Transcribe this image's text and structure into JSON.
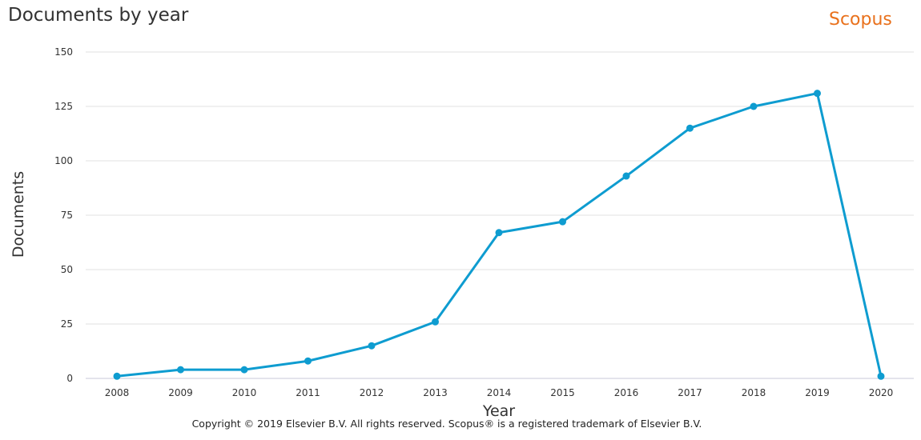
{
  "header": {
    "title": "Documents by year",
    "brand": "Scopus"
  },
  "footer": {
    "copyright": "Copyright © 2019 Elsevier B.V. All rights reserved. Scopus® is a registered trademark of Elsevier B.V."
  },
  "colors": {
    "series": "#0e9cd0",
    "brand": "#e9711c",
    "grid": "#e0e0e0"
  },
  "chart_data": {
    "type": "line",
    "title": "Documents by year",
    "xlabel": "Year",
    "ylabel": "Documents",
    "x": [
      "2008",
      "2009",
      "2010",
      "2011",
      "2012",
      "2013",
      "2014",
      "2015",
      "2016",
      "2017",
      "2018",
      "2019",
      "2020"
    ],
    "series": [
      {
        "values": [
          1,
          4,
          4,
          8,
          15,
          26,
          67,
          72,
          93,
          115,
          125,
          131,
          1
        ]
      }
    ],
    "ylim": [
      0,
      150
    ],
    "yticks": [
      0,
      25,
      50,
      75,
      100,
      125,
      150
    ],
    "grid": true,
    "legend": "none"
  }
}
